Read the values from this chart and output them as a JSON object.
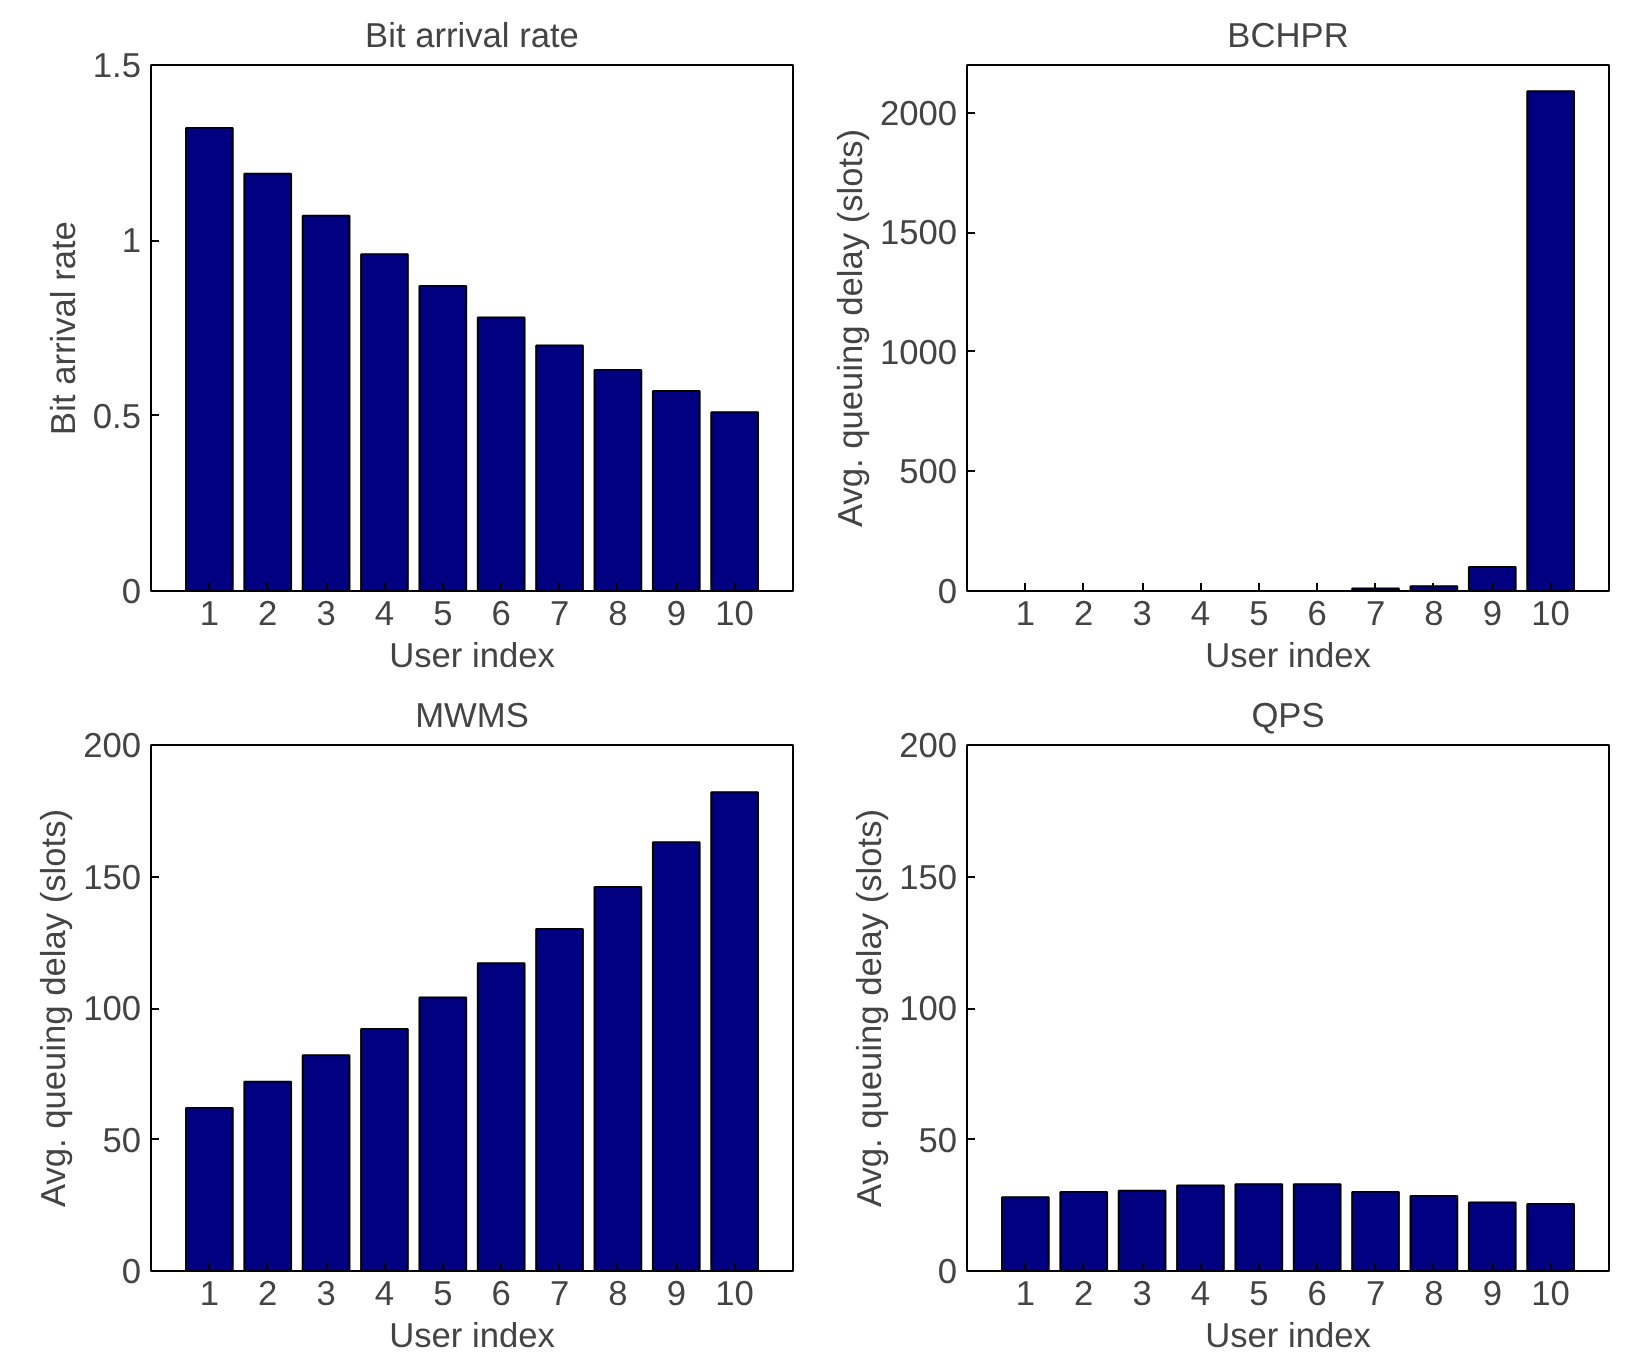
{
  "chart_data": [
    {
      "type": "bar",
      "title": "Bit arrival rate",
      "xlabel": "User index",
      "ylabel": "Bit arrival rate",
      "categories": [
        "1",
        "2",
        "3",
        "4",
        "5",
        "6",
        "7",
        "8",
        "9",
        "10"
      ],
      "values": [
        1.32,
        1.19,
        1.07,
        0.96,
        0.87,
        0.78,
        0.7,
        0.63,
        0.57,
        0.51
      ],
      "color": "#000080",
      "ylim": [
        0,
        1.5
      ],
      "yticks": [
        0,
        0.5,
        1,
        1.5
      ],
      "grid": false
    },
    {
      "type": "bar",
      "title": "BCHPR",
      "xlabel": "User index",
      "ylabel": "Avg. queuing delay (slots)",
      "categories": [
        "1",
        "2",
        "3",
        "4",
        "5",
        "6",
        "7",
        "8",
        "9",
        "10"
      ],
      "values": [
        0,
        0,
        0,
        0,
        0,
        0,
        10,
        20,
        100,
        2090
      ],
      "color": "#000080",
      "ylim": [
        0,
        2200
      ],
      "yticks": [
        0,
        500,
        1000,
        1500,
        2000
      ],
      "grid": false
    },
    {
      "type": "bar",
      "title": "MWMS",
      "xlabel": "User index",
      "ylabel": "Avg. queuing delay (slots)",
      "categories": [
        "1",
        "2",
        "3",
        "4",
        "5",
        "6",
        "7",
        "8",
        "9",
        "10"
      ],
      "values": [
        62,
        72,
        82,
        92,
        104,
        117,
        130,
        146,
        163,
        182
      ],
      "color": "#000080",
      "ylim": [
        0,
        200
      ],
      "yticks": [
        0,
        50,
        100,
        150,
        200
      ],
      "grid": false
    },
    {
      "type": "bar",
      "title": "QPS",
      "xlabel": "User index",
      "ylabel": "Avg. queuing delay (slots)",
      "categories": [
        "1",
        "2",
        "3",
        "4",
        "5",
        "6",
        "7",
        "8",
        "9",
        "10"
      ],
      "values": [
        28,
        30,
        30.5,
        32.5,
        33,
        33,
        30,
        28.5,
        26,
        25.5
      ],
      "color": "#000080",
      "ylim": [
        0,
        200
      ],
      "yticks": [
        0,
        50,
        100,
        150,
        200
      ],
      "grid": false
    }
  ]
}
